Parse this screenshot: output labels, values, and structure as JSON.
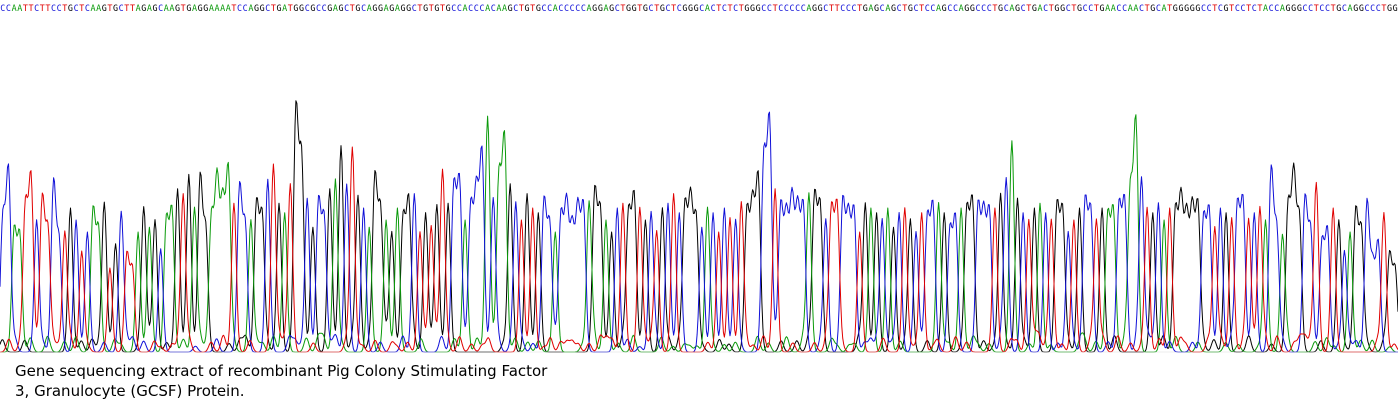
{
  "caption": {
    "line1": "Gene sequencing extract of recombinant Pig Colony Stimulating Factor",
    "line2": "3, Granulocyte (GCSF) Protein."
  },
  "colors": {
    "A": "#0a9a0a",
    "C": "#1010d8",
    "G": "#000000",
    "T": "#e00000",
    "background": "#ffffff"
  },
  "chart_data": {
    "type": "line",
    "description_type": "DNA sequencing chromatogram",
    "title": "",
    "xlabel": "",
    "ylabel": "",
    "axes_visible": false,
    "grid": false,
    "legend": "none",
    "base_calls": "CCAATTCTTCCTGCTCAAGTGCTTAGAGCAAGTGAGGAAAATCCAGGCTGATGGCGCCGAGCTGCAGGAGAGGCTGTGTGCCACCCACAAGCTGTGCCACCCCCAGGAGCTGGTGCTGCTCGGGCACTCTCTGGGCCTCCCCCAGGCTTCCCTGAGCAGCTGCTCCAGCCAGGCCCTGCAGCTGACTGGCTGCCTGAACCAACTGCATGGGGGCCTCGTCCTCTACCAGGGCCTCCTGCAGGCCCTGG",
    "series": [
      {
        "base": "A",
        "trace": "A"
      },
      {
        "base": "C",
        "trace": "C"
      },
      {
        "base": "G",
        "trace": "G"
      },
      {
        "base": "T",
        "trace": "T"
      }
    ],
    "y_range": [
      0,
      1
    ],
    "peaks": [
      0.55,
      0.75,
      0.5,
      0.48,
      0.6,
      0.72,
      0.55,
      0.63,
      0.5,
      0.7,
      0.45,
      0.5,
      0.6,
      0.55,
      0.42,
      0.5,
      0.58,
      0.5,
      0.62,
      0.35,
      0.45,
      0.58,
      0.4,
      0.34,
      0.5,
      0.6,
      0.52,
      0.55,
      0.43,
      0.54,
      0.58,
      0.68,
      0.65,
      0.74,
      0.6,
      0.72,
      0.5,
      0.55,
      0.7,
      0.6,
      0.75,
      0.62,
      0.68,
      0.52,
      0.55,
      0.61,
      0.56,
      0.72,
      0.78,
      0.62,
      0.58,
      0.7,
      1.0,
      0.8,
      0.64,
      0.52,
      0.62,
      0.55,
      0.68,
      0.72,
      0.86,
      0.7,
      0.85,
      0.65,
      0.6,
      0.52,
      0.72,
      0.58,
      0.55,
      0.5,
      0.6,
      0.55,
      0.62,
      0.66,
      0.5,
      0.58,
      0.52,
      0.61,
      0.75,
      0.62,
      0.68,
      0.7,
      0.55,
      0.6,
      0.65,
      0.82,
      0.98,
      0.64,
      0.72,
      0.88,
      0.7,
      0.62,
      0.55,
      0.66,
      0.6,
      0.58,
      0.62,
      0.52,
      0.5,
      0.56,
      0.6,
      0.5,
      0.58,
      0.6,
      0.62,
      0.66,
      0.58,
      0.55,
      0.5,
      0.6,
      0.62,
      0.57,
      0.64,
      0.6,
      0.55,
      0.58,
      0.5,
      0.6,
      0.62,
      0.66,
      0.58,
      0.6,
      0.62,
      0.55,
      0.52,
      0.6,
      0.58,
      0.5,
      0.6,
      0.56,
      0.55,
      0.62,
      0.58,
      0.6,
      0.72,
      0.8,
      0.95,
      0.68,
      0.6,
      0.55,
      0.62,
      0.58,
      0.6,
      0.66,
      0.64,
      0.6,
      0.55,
      0.58,
      0.6,
      0.62,
      0.55,
      0.58,
      0.5,
      0.62,
      0.6,
      0.58,
      0.55,
      0.6,
      0.52,
      0.58,
      0.6,
      0.55,
      0.5,
      0.58,
      0.55,
      0.6,
      0.62,
      0.58,
      0.5,
      0.55,
      0.6,
      0.58,
      0.62,
      0.6,
      0.56,
      0.58,
      0.6,
      0.66,
      0.72,
      0.88,
      0.64,
      0.58,
      0.55,
      0.6,
      0.62,
      0.58,
      0.55,
      0.6,
      0.58,
      0.5,
      0.55,
      0.6,
      0.62,
      0.58,
      0.55,
      0.6,
      0.56,
      0.58,
      0.6,
      0.62,
      0.66,
      0.95,
      0.72,
      0.6,
      0.58,
      0.62,
      0.55,
      0.6,
      0.58,
      0.62,
      0.55,
      0.58,
      0.6,
      0.55,
      0.58,
      0.52,
      0.6,
      0.58,
      0.56,
      0.6,
      0.62,
      0.55,
      0.58,
      0.6
    ]
  }
}
